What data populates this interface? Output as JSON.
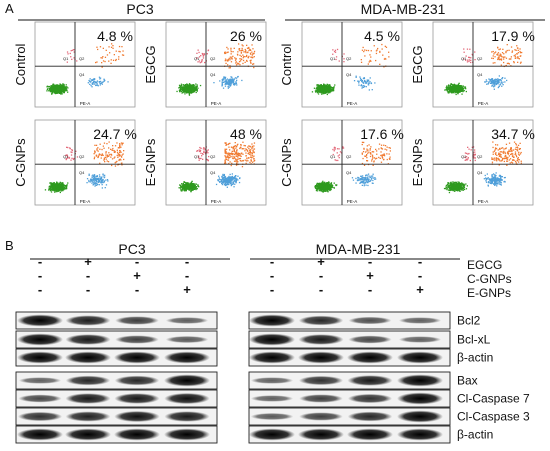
{
  "panel_a": {
    "label": "A",
    "cell_lines": [
      "PC3",
      "MDA-MB-231"
    ],
    "plots": [
      {
        "cell_line": "PC3",
        "treatment": "Control",
        "percent": "4.8 %",
        "apoptosis": 4.8
      },
      {
        "cell_line": "PC3",
        "treatment": "EGCG",
        "percent": "26 %",
        "apoptosis": 26
      },
      {
        "cell_line": "PC3",
        "treatment": "C-GNPs",
        "percent": "24.7 %",
        "apoptosis": 24.7
      },
      {
        "cell_line": "PC3",
        "treatment": "E-GNPs",
        "percent": "48 %",
        "apoptosis": 48
      },
      {
        "cell_line": "MDA-MB-231",
        "treatment": "Control",
        "percent": "4.5 %",
        "apoptosis": 4.5
      },
      {
        "cell_line": "MDA-MB-231",
        "treatment": "EGCG",
        "percent": "17.9 %",
        "apoptosis": 17.9
      },
      {
        "cell_line": "MDA-MB-231",
        "treatment": "C-GNPs",
        "percent": "17.6 %",
        "apoptosis": 17.6
      },
      {
        "cell_line": "MDA-MB-231",
        "treatment": "E-GNPs",
        "percent": "34.7 %",
        "apoptosis": 34.7
      }
    ],
    "axis_label": "PE-A",
    "quadrant_labels": [
      "Q1",
      "Q2",
      "Q4"
    ],
    "colors": {
      "live": "#2e9a1e",
      "early": "#4f9fd9",
      "late": "#f07a30",
      "necrotic": "#e36a7a"
    }
  },
  "panel_b": {
    "label": "B",
    "cell_lines": [
      "PC3",
      "MDA-MB-231"
    ],
    "treatments": [
      {
        "name": "EGCG",
        "signs": [
          "-",
          "+",
          "-",
          "-"
        ]
      },
      {
        "name": "C-GNPs",
        "signs": [
          "-",
          "-",
          "+",
          "-"
        ]
      },
      {
        "name": "E-GNPs",
        "signs": [
          "-",
          "-",
          "-",
          "+"
        ]
      }
    ],
    "blot_group_1": [
      {
        "protein": "Bcl2",
        "pc3": [
          1.0,
          0.82,
          0.62,
          0.42
        ],
        "mda": [
          1.0,
          0.75,
          0.5,
          0.4
        ]
      },
      {
        "protein": "Bcl-xL",
        "pc3": [
          1.0,
          0.85,
          0.6,
          0.45
        ],
        "mda": [
          1.0,
          0.85,
          0.55,
          0.4
        ]
      },
      {
        "protein": "β-actin",
        "pc3": [
          1.0,
          1.0,
          1.0,
          1.0
        ],
        "mda": [
          1.0,
          1.0,
          1.0,
          1.0
        ]
      }
    ],
    "blot_group_2": [
      {
        "protein": "Bax",
        "pc3": [
          0.4,
          0.75,
          0.75,
          1.0
        ],
        "mda": [
          0.4,
          0.7,
          0.85,
          1.0
        ]
      },
      {
        "protein": "Cl-Caspase 7",
        "pc3": [
          0.55,
          0.85,
          0.85,
          0.9
        ],
        "mda": [
          0.4,
          0.6,
          0.7,
          1.0
        ]
      },
      {
        "protein": "Cl-Caspase 3",
        "pc3": [
          0.7,
          0.8,
          0.9,
          0.85
        ],
        "mda": [
          0.45,
          0.6,
          0.75,
          1.0
        ]
      },
      {
        "protein": "β-actin",
        "pc3": [
          1.0,
          1.0,
          1.0,
          1.0
        ],
        "mda": [
          1.0,
          1.0,
          1.0,
          1.0
        ]
      }
    ]
  }
}
